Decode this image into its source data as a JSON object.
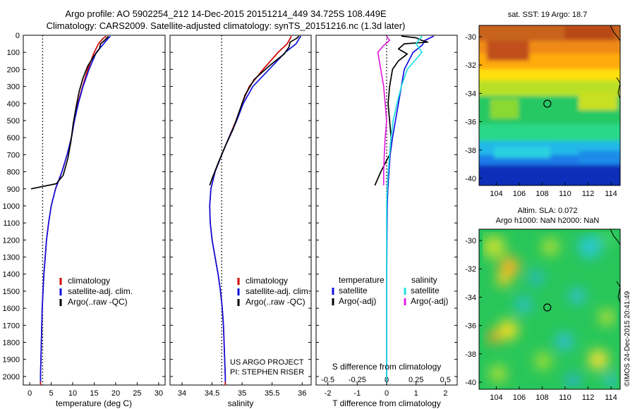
{
  "header": {
    "line1": "Argo profile: AO 5902254_212 14-Dec-2015 20151214_449 34.725S 108.449E",
    "line2": "Climatology: CARS2009. Satellite-adjusted climatology: synTS_20151216.nc (1.3d later)"
  },
  "colors": {
    "climatology": "#d00000",
    "satellite": "#1010e0",
    "argo": "#000000",
    "satellite_salinity": "#20e0e0",
    "argo_salinity": "#e020e0"
  },
  "credits": {
    "project": "US ARGO PROJECT",
    "pi": "PI: STEPHEN RISER",
    "stamp": "©IMOS 24-Dec-2015 20:41:49"
  },
  "chart_data": [
    {
      "type": "line",
      "id": "temperature",
      "xlabel": "temperature (deg C)",
      "ylabel": "",
      "xlim": [
        -1.5,
        31.5
      ],
      "ylim": [
        2050,
        0
      ],
      "xticks": [
        0,
        5,
        10,
        15,
        20,
        25,
        30
      ],
      "yticks": [
        0,
        100,
        200,
        300,
        400,
        500,
        600,
        700,
        800,
        900,
        1000,
        1100,
        1200,
        1300,
        1400,
        1500,
        1600,
        1700,
        1800,
        1900,
        2000
      ],
      "reference_x": 3,
      "legend": [
        "climatology",
        "satellite-adj. clim.",
        "Argo(..raw -QC)"
      ],
      "legend_position": "lower-center",
      "series": [
        {
          "name": "climatology",
          "color_key": "climatology",
          "points": [
            [
              17.8,
              5
            ],
            [
              17.0,
              20
            ],
            [
              16.0,
              50
            ],
            [
              15.0,
              100
            ],
            [
              13.5,
              200
            ],
            [
              12.3,
              300
            ],
            [
              11.2,
              400
            ],
            [
              10.4,
              500
            ],
            [
              9.7,
              600
            ],
            [
              8.7,
              700
            ],
            [
              7.5,
              800
            ],
            [
              6.0,
              900
            ],
            [
              5.0,
              1000
            ],
            [
              4.4,
              1100
            ],
            [
              3.9,
              1200
            ],
            [
              3.6,
              1300
            ],
            [
              3.3,
              1400
            ],
            [
              3.1,
              1500
            ],
            [
              2.9,
              1600
            ],
            [
              2.8,
              1700
            ],
            [
              2.7,
              1800
            ],
            [
              2.6,
              1900
            ],
            [
              2.5,
              2000
            ],
            [
              2.5,
              2050
            ]
          ]
        },
        {
          "name": "satellite-adj. clim.",
          "color_key": "satellite",
          "points": [
            [
              18.8,
              5
            ],
            [
              18.2,
              20
            ],
            [
              17.2,
              50
            ],
            [
              15.5,
              100
            ],
            [
              13.8,
              200
            ],
            [
              12.4,
              300
            ],
            [
              11.3,
              400
            ],
            [
              10.4,
              500
            ],
            [
              9.7,
              600
            ],
            [
              8.7,
              700
            ],
            [
              7.5,
              800
            ],
            [
              6.0,
              900
            ],
            [
              5.0,
              1000
            ],
            [
              4.4,
              1100
            ],
            [
              3.9,
              1200
            ],
            [
              3.6,
              1300
            ],
            [
              3.3,
              1400
            ],
            [
              3.1,
              1500
            ],
            [
              2.9,
              1600
            ],
            [
              2.8,
              1700
            ],
            [
              2.7,
              1800
            ],
            [
              2.6,
              1900
            ],
            [
              2.5,
              2000
            ],
            [
              2.5,
              2030
            ]
          ]
        },
        {
          "name": "Argo(..raw -QC)",
          "color_key": "argo",
          "points": [
            [
              18.3,
              5
            ],
            [
              18.0,
              15
            ],
            [
              17.4,
              30
            ],
            [
              16.5,
              50
            ],
            [
              16.2,
              80
            ],
            [
              15.0,
              120
            ],
            [
              13.5,
              180
            ],
            [
              12.4,
              250
            ],
            [
              11.5,
              330
            ],
            [
              10.8,
              420
            ],
            [
              10.1,
              520
            ],
            [
              9.6,
              620
            ],
            [
              8.9,
              720
            ],
            [
              7.8,
              820
            ],
            [
              6.2,
              870
            ],
            [
              0.3,
              900
            ]
          ]
        }
      ]
    },
    {
      "type": "line",
      "id": "salinity",
      "xlabel": "salinity",
      "ylabel": "",
      "xlim": [
        33.8,
        36.15
      ],
      "ylim": [
        2050,
        0
      ],
      "xticks": [
        34,
        34.5,
        35,
        35.5,
        36
      ],
      "reference_x": 34.66,
      "legend": [
        "climatology",
        "satellite-adj. clim.",
        "Argo(..raw -QC)"
      ],
      "legend_position": "lower-right",
      "series": [
        {
          "name": "climatology",
          "color_key": "climatology",
          "points": [
            [
              35.82,
              5
            ],
            [
              35.8,
              20
            ],
            [
              35.75,
              50
            ],
            [
              35.6,
              100
            ],
            [
              35.35,
              200
            ],
            [
              35.12,
              300
            ],
            [
              35.0,
              400
            ],
            [
              34.9,
              500
            ],
            [
              34.78,
              600
            ],
            [
              34.66,
              700
            ],
            [
              34.55,
              800
            ],
            [
              34.48,
              900
            ],
            [
              34.46,
              1000
            ],
            [
              34.47,
              1100
            ],
            [
              34.5,
              1200
            ],
            [
              34.55,
              1300
            ],
            [
              34.6,
              1400
            ],
            [
              34.64,
              1500
            ],
            [
              34.67,
              1600
            ],
            [
              34.69,
              1700
            ],
            [
              34.7,
              1800
            ],
            [
              34.71,
              1900
            ],
            [
              34.72,
              2000
            ],
            [
              34.72,
              2050
            ]
          ]
        },
        {
          "name": "satellite-adj. clim.",
          "color_key": "satellite",
          "points": [
            [
              35.98,
              5
            ],
            [
              35.95,
              20
            ],
            [
              35.9,
              50
            ],
            [
              35.72,
              100
            ],
            [
              35.45,
              200
            ],
            [
              35.18,
              300
            ],
            [
              35.02,
              400
            ],
            [
              34.91,
              500
            ],
            [
              34.78,
              600
            ],
            [
              34.66,
              700
            ],
            [
              34.55,
              800
            ],
            [
              34.48,
              900
            ],
            [
              34.46,
              1000
            ],
            [
              34.47,
              1100
            ],
            [
              34.5,
              1200
            ],
            [
              34.55,
              1300
            ],
            [
              34.6,
              1400
            ],
            [
              34.64,
              1500
            ],
            [
              34.67,
              1600
            ],
            [
              34.69,
              1700
            ],
            [
              34.7,
              1800
            ],
            [
              34.71,
              1900
            ],
            [
              34.72,
              2000
            ],
            [
              34.72,
              2030
            ]
          ]
        },
        {
          "name": "Argo(..raw -QC)",
          "color_key": "argo",
          "points": [
            [
              35.95,
              5
            ],
            [
              35.9,
              20
            ],
            [
              35.8,
              40
            ],
            [
              35.78,
              70
            ],
            [
              35.7,
              110
            ],
            [
              35.45,
              180
            ],
            [
              35.2,
              260
            ],
            [
              35.05,
              350
            ],
            [
              34.95,
              450
            ],
            [
              34.85,
              550
            ],
            [
              34.72,
              650
            ],
            [
              34.6,
              750
            ],
            [
              34.5,
              840
            ],
            [
              34.46,
              880
            ]
          ]
        }
      ]
    },
    {
      "type": "line",
      "id": "difference",
      "xlabel": "T difference from climatology",
      "top_label": "S difference from climatology",
      "xlim": [
        -2.4,
        2.4
      ],
      "ylim": [
        2050,
        0
      ],
      "xticks": [
        -2,
        -1,
        0,
        1,
        2
      ],
      "sticks_positions": [
        -2,
        -1,
        0,
        1,
        2
      ],
      "sticks_labels": [
        "-0.5",
        "-0.25",
        "0",
        "0.25",
        "0.5"
      ],
      "reference_x": 0,
      "legend_title": [
        "temperature",
        "salinity"
      ],
      "legend": [
        "satellite",
        "Argo(-adj)",
        "satellite",
        "Argo(-adj)"
      ],
      "legend_position": "lower-center",
      "series": [
        {
          "name": "temperature satellite",
          "color_key": "satellite",
          "points": [
            [
              1.6,
              5
            ],
            [
              1.3,
              30
            ],
            [
              1.2,
              60
            ],
            [
              0.9,
              100
            ],
            [
              0.6,
              200
            ],
            [
              0.5,
              300
            ],
            [
              0.4,
              400
            ],
            [
              0.3,
              500
            ],
            [
              0.2,
              600
            ],
            [
              0.12,
              700
            ],
            [
              0.08,
              800
            ],
            [
              0.04,
              900
            ],
            [
              0.02,
              1000
            ],
            [
              0.01,
              1200
            ],
            [
              0.0,
              1500
            ],
            [
              0.0,
              2030
            ]
          ]
        },
        {
          "name": "temperature Argo(-adj)",
          "color_key": "argo",
          "points": [
            [
              0.5,
              5
            ],
            [
              1.0,
              15
            ],
            [
              1.2,
              30
            ],
            [
              1.4,
              40
            ],
            [
              0.6,
              50
            ],
            [
              0.4,
              80
            ],
            [
              0.7,
              110
            ],
            [
              0.4,
              150
            ],
            [
              0.2,
              200
            ],
            [
              0.1,
              300
            ],
            [
              0.05,
              400
            ],
            [
              0.1,
              500
            ],
            [
              0.15,
              600
            ],
            [
              0.1,
              700
            ],
            [
              -0.2,
              800
            ],
            [
              -0.4,
              880
            ]
          ]
        },
        {
          "name": "salinity satellite",
          "color_key": "satellite_salinity",
          "points": [
            [
              1.2,
              5
            ],
            [
              1.0,
              50
            ],
            [
              1.2,
              100
            ],
            [
              0.7,
              200
            ],
            [
              0.5,
              300
            ],
            [
              0.35,
              400
            ],
            [
              0.22,
              500
            ],
            [
              0.15,
              600
            ],
            [
              0.1,
              700
            ],
            [
              0.05,
              800
            ],
            [
              0.02,
              900
            ],
            [
              0.0,
              1000
            ],
            [
              0.0,
              2030
            ]
          ]
        },
        {
          "name": "salinity Argo(-adj)",
          "color_key": "argo_salinity",
          "points": [
            [
              0.0,
              5
            ],
            [
              0.1,
              30
            ],
            [
              -0.1,
              60
            ],
            [
              -0.3,
              100
            ],
            [
              -0.2,
              200
            ],
            [
              -0.1,
              300
            ],
            [
              -0.05,
              400
            ],
            [
              0.0,
              500
            ],
            [
              -0.05,
              600
            ],
            [
              -0.08,
              700
            ],
            [
              -0.1,
              800
            ],
            [
              -0.1,
              880
            ]
          ]
        }
      ]
    },
    {
      "type": "heatmap",
      "id": "sst_map",
      "title": "sat. SST: 19 Argo: 18.7",
      "xlim": [
        102.5,
        114.8
      ],
      "ylim": [
        -40.5,
        -29.2
      ],
      "xticks": [
        104,
        106,
        108,
        110,
        112,
        114
      ],
      "yticks": [
        -30,
        -32,
        -34,
        -36,
        -38,
        -40
      ],
      "float_position": [
        108.449,
        -34.725
      ],
      "colormap": "jet",
      "description": "warm orange/red in north grading to green mid and blue/dark blue in south"
    },
    {
      "type": "heatmap",
      "id": "sla_map",
      "title": "Altim. SLA: 0.072",
      "subtitle": "Argo h1000: NaN h2000: NaN",
      "xlim": [
        102.5,
        114.8
      ],
      "ylim": [
        -40.5,
        -29.2
      ],
      "xticks": [
        104,
        106,
        108,
        110,
        112,
        114
      ],
      "yticks": [
        -30,
        -32,
        -34,
        -36,
        -38,
        -40
      ],
      "float_position": [
        108.449,
        -34.725
      ],
      "colormap": "jet",
      "description": "mostly green with yellow, orange and cyan eddy patches"
    }
  ]
}
